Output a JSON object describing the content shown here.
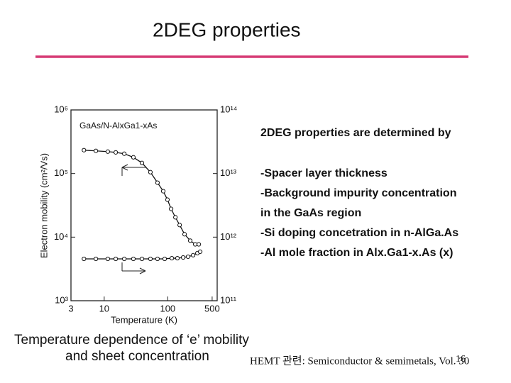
{
  "header": {
    "title": "2DEG properties"
  },
  "chart_data": {
    "type": "line",
    "inset_label": "GaAs/N-AlxGa1-xAs",
    "xlabel": "Temperature (K)",
    "ylabel": "Electron mobility (cm²/Vs)",
    "xscale": "log",
    "yscale": "log",
    "xlim": [
      3,
      600
    ],
    "xticks": [
      3,
      10,
      100,
      500
    ],
    "ylim": [
      1000,
      1000000
    ],
    "yticks": [
      {
        "value": 1000,
        "label": "10³"
      },
      {
        "value": 10000,
        "label": "10⁴"
      },
      {
        "value": 100000,
        "label": "10⁵"
      },
      {
        "value": 1000000,
        "label": "10⁶"
      }
    ],
    "y2lim": [
      100000000000,
      100000000000000
    ],
    "y2ticks": [
      {
        "value": 100000000000,
        "label": "10¹¹"
      },
      {
        "value": 1000000000000,
        "label": "10¹²"
      },
      {
        "value": 10000000000000,
        "label": "10¹³"
      },
      {
        "value": 100000000000000,
        "label": "10¹⁴"
      }
    ],
    "series": [
      {
        "color": "#111111",
        "x": [
          4.8,
          7.4,
          11.4,
          15.2,
          20.7,
          28.8,
          39.3,
          53.4,
          69,
          85,
          99,
          113,
          132,
          154,
          184,
          226,
          271,
          308
        ],
        "values": [
          233000,
          227000,
          221000,
          215000,
          205000,
          180000,
          147000,
          105000,
          71800,
          52700,
          38800,
          27800,
          20500,
          15500,
          11100,
          8800,
          7700,
          7700
        ]
      },
      {
        "color": "#111111",
        "axis": "y2",
        "x": [
          4.8,
          7.4,
          11.4,
          15.2,
          20.7,
          28.8,
          39.3,
          53.4,
          69,
          89.5,
          116,
          142,
          175,
          209,
          251,
          293,
          324
        ],
        "values": [
          455000000000,
          455000000000,
          455000000000,
          455000000000,
          455000000000,
          455000000000,
          455000000000,
          455000000000,
          455000000000,
          455000000000,
          466000000000,
          466000000000,
          479000000000,
          492000000000,
          520000000000,
          560000000000,
          590000000000
        ]
      }
    ]
  },
  "text_block": {
    "heading": "2DEG properties are determined by",
    "items": [
      "-Spacer layer thickness",
      "-Background impurity concentration",
      " in the GaAs region",
      "-Si doping concetration in n-AlGa.As",
      "-Al mole fraction in Alx.Ga1-x.As (x)"
    ]
  },
  "caption": [
    "Temperature dependence of ‘e’ mobility",
    "and sheet concentration"
  ],
  "reference": "HEMT 관련: Semiconductor & semimetals, Vol. 30",
  "page_number": "16"
}
